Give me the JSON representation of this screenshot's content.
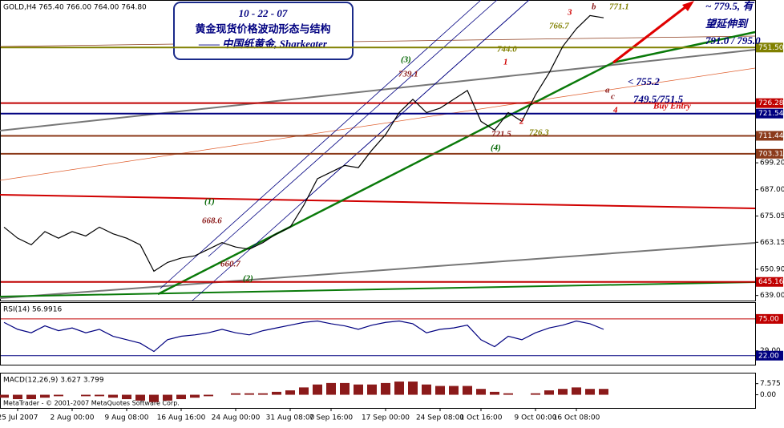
{
  "header": "GOLD,H4 765.40 766.00 764.00 764.80",
  "info_box": {
    "title": "10 - 22 - 07",
    "line1": "黄金现货价格波动形态与结构",
    "line2": "—— 中国纸黄金,   Sharkeater"
  },
  "footer": "MetaTrader - © 2001-2007 MetaQuotes Software Corp.",
  "chart_data": [
    {
      "type": "line",
      "title": null,
      "categories": [
        null,
        "25 Jul 2007",
        null,
        null,
        null,
        "2 Aug 00:00",
        null,
        null,
        null,
        "9 Aug 08:00",
        null,
        null,
        null,
        "16 Aug 16:00",
        null,
        null,
        null,
        "24 Aug 00:00",
        null,
        null,
        null,
        "31 Aug 08:00",
        null,
        null,
        "7 Sep 16:00",
        null,
        null,
        null,
        "17 Sep 00:00",
        null,
        null,
        null,
        "24 Sep 08:00",
        null,
        null,
        "1 Oct 16:00",
        null,
        null,
        null,
        "9 Oct 00:00",
        null,
        null,
        "16 Oct 08:00",
        null,
        null
      ],
      "series": [
        {
          "color": "#000000",
          "values": [
            670,
            665,
            662,
            668,
            665,
            668,
            666,
            670,
            667,
            665,
            662,
            650,
            654,
            656,
            657,
            660,
            663,
            661,
            660,
            663,
            667,
            670,
            680,
            692,
            695,
            698,
            697,
            705,
            712,
            722,
            728,
            722,
            724,
            728,
            732,
            718,
            714,
            722,
            718,
            730,
            740,
            752,
            760,
            766,
            765
          ]
        }
      ],
      "ylim": [
        636.7,
        772.7
      ],
      "yticks": [
        {
          "value": 639,
          "label": "639.00"
        },
        {
          "value": 650.9,
          "label": "650.90"
        },
        {
          "value": 663.15,
          "label": "663.15"
        },
        {
          "value": 675.05,
          "label": "675.05"
        },
        {
          "value": 687,
          "label": "687.00"
        },
        {
          "value": 699.2,
          "label": "699.20"
        }
      ],
      "levels": [
        {
          "value": 751.5,
          "label": "751.50",
          "color": "#808000"
        },
        {
          "value": 726.28,
          "label": "726.28",
          "color": "#c00000"
        },
        {
          "value": 721.54,
          "label": "721.54",
          "color": "#000080"
        },
        {
          "value": 711.44,
          "label": "711.44",
          "color": "#8b3a1a"
        },
        {
          "value": 703.31,
          "label": "703.31",
          "color": "#8b3a1a"
        },
        {
          "value": 645.16,
          "label": "645.16",
          "color": "#c00000"
        }
      ],
      "annotations": [
        {
          "text": "(1)",
          "color": "#006400"
        },
        {
          "text": "668.6",
          "color": "#8b1a1a"
        },
        {
          "text": "660.7",
          "color": "#8b1a1a"
        },
        {
          "text": "(2)",
          "color": "#006400"
        },
        {
          "text": "(3)",
          "color": "#006400"
        },
        {
          "text": "739.1",
          "color": "#8b1a1a"
        },
        {
          "text": "744.0",
          "color": "#808000"
        },
        {
          "text": "766.7",
          "color": "#808000"
        },
        {
          "text": "1",
          "color": "#d00000"
        },
        {
          "text": "3",
          "color": "#d00000"
        },
        {
          "text": "b",
          "color": "#8b1a1a"
        },
        {
          "text": "771.1",
          "color": "#808000"
        },
        {
          "text": "2",
          "color": "#d00000"
        },
        {
          "text": "721.5",
          "color": "#8b1a1a"
        },
        {
          "text": "726.3",
          "color": "#808000"
        },
        {
          "text": "(4)",
          "color": "#006400"
        },
        {
          "text": "a",
          "color": "#8b1a1a"
        },
        {
          "text": "c",
          "color": "#8b1a1a"
        },
        {
          "text": "< 755.2",
          "color": "#000080"
        },
        {
          "text": "4",
          "color": "#d00000"
        },
        {
          "text": "749.5/751.5",
          "color": "#000080"
        },
        {
          "text": "Buy Entry",
          "color": "#d00000"
        },
        {
          "text": "~ 779.5, 有",
          "color": "#000080"
        },
        {
          "text": "望延伸到",
          "color": "#000080"
        },
        {
          "text": "791.0 / 795.0",
          "color": "#000080"
        }
      ]
    },
    {
      "type": "line",
      "title": "RSI(14) 56.9916",
      "series": [
        {
          "color": "#000080",
          "values": [
            70,
            60,
            55,
            65,
            58,
            62,
            55,
            60,
            50,
            45,
            40,
            28,
            45,
            50,
            52,
            55,
            60,
            55,
            52,
            58,
            62,
            66,
            70,
            72,
            68,
            65,
            60,
            66,
            70,
            72,
            68,
            55,
            60,
            62,
            66,
            45,
            35,
            50,
            45,
            55,
            62,
            66,
            72,
            68,
            60
          ]
        }
      ],
      "ylim": [
        9,
        98
      ],
      "yticks": [
        {
          "value": 29,
          "label": "29.00"
        }
      ],
      "levels": [
        {
          "value": 75,
          "label": "75.00",
          "color": "#c00000"
        },
        {
          "value": 22,
          "label": "22.00",
          "color": "#000080"
        }
      ]
    },
    {
      "type": "bar",
      "title": "MACD(12,26,9) 3.627 3.799",
      "series": [
        {
          "color": "#8b1a1a",
          "values": [
            -2,
            -3,
            -3,
            -2,
            -1,
            0,
            -1,
            -1,
            -2,
            -3,
            -4,
            -5,
            -4,
            -3,
            -2,
            -1,
            0,
            1,
            1,
            1,
            2,
            3,
            5,
            7,
            8,
            8,
            7,
            7,
            8,
            9,
            9,
            7,
            6,
            6,
            6,
            4,
            2,
            1,
            0,
            1,
            3,
            4,
            5,
            4,
            4
          ]
        }
      ],
      "ylim": [
        -9,
        14.5
      ],
      "yticks": [
        7.575,
        {
          "value": 0,
          "label": "0.00"
        }
      ]
    }
  ]
}
